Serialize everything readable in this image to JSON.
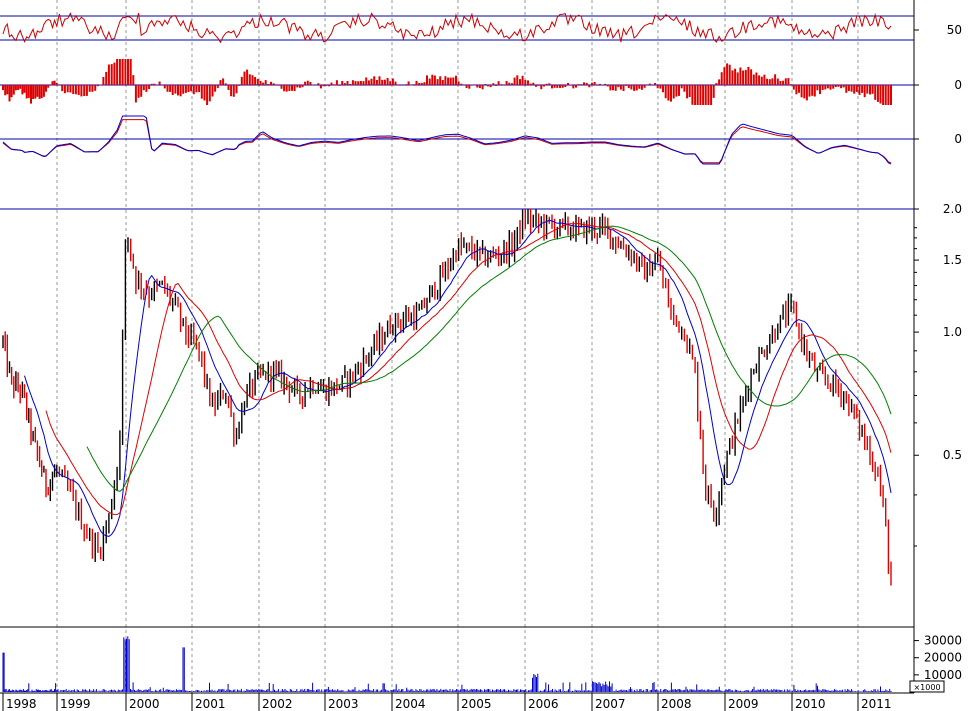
{
  "chart_data": {
    "type": "line",
    "title": "",
    "colors": {
      "up_bar": "#000000",
      "down_bar": "#e00000",
      "ma_short": "#0000cc",
      "ma_mid": "#e00000",
      "ma_long": "#008000",
      "rsi": "#cc0000",
      "macd_hist": "#e00000",
      "volume": "#0000cc",
      "reference_line": "#0000aa",
      "grid": "#9a9a9a"
    },
    "years": [
      "1998",
      "1999",
      "2000",
      "2001",
      "2002",
      "2003",
      "2004",
      "2005",
      "2006",
      "2007",
      "2008",
      "2009",
      "2010",
      "2011"
    ],
    "indicators": {
      "rsi": {
        "tick_labels": [
          "50"
        ],
        "levels": [
          30,
          70
        ]
      },
      "macd": {
        "tick_labels": [
          "0"
        ]
      },
      "oscillator": {
        "tick_labels": [
          "0"
        ]
      }
    },
    "price": {
      "scale": "log",
      "ylim": [
        0.2,
        2.0
      ],
      "tick_labels": [
        {
          "label": "2.0",
          "value": 2.0
        },
        {
          "label": "1.5",
          "value": 1.5
        },
        {
          "label": "1.0",
          "value": 1.0
        },
        {
          "label": "0.5",
          "value": 0.5
        }
      ],
      "series": [
        {
          "x": 1998.0,
          "y": 0.95
        },
        {
          "x": 1998.15,
          "y": 0.75
        },
        {
          "x": 1998.35,
          "y": 0.72
        },
        {
          "x": 1998.55,
          "y": 0.55
        },
        {
          "x": 1998.8,
          "y": 0.42
        },
        {
          "x": 1999.0,
          "y": 0.46
        },
        {
          "x": 1999.2,
          "y": 0.4
        },
        {
          "x": 1999.4,
          "y": 0.33
        },
        {
          "x": 1999.6,
          "y": 0.29
        },
        {
          "x": 1999.75,
          "y": 0.35
        },
        {
          "x": 1999.9,
          "y": 0.5
        },
        {
          "x": 2000.0,
          "y": 1.8
        },
        {
          "x": 2000.15,
          "y": 1.35
        },
        {
          "x": 2000.35,
          "y": 1.25
        },
        {
          "x": 2000.55,
          "y": 1.3
        },
        {
          "x": 2000.75,
          "y": 1.15
        },
        {
          "x": 2000.9,
          "y": 1.0
        },
        {
          "x": 2001.1,
          "y": 0.9
        },
        {
          "x": 2001.3,
          "y": 0.65
        },
        {
          "x": 2001.5,
          "y": 0.72
        },
        {
          "x": 2001.65,
          "y": 0.55
        },
        {
          "x": 2001.8,
          "y": 0.7
        },
        {
          "x": 2002.0,
          "y": 0.78
        },
        {
          "x": 2002.2,
          "y": 0.8
        },
        {
          "x": 2002.4,
          "y": 0.76
        },
        {
          "x": 2002.6,
          "y": 0.7
        },
        {
          "x": 2002.8,
          "y": 0.75
        },
        {
          "x": 2003.0,
          "y": 0.72
        },
        {
          "x": 2003.2,
          "y": 0.74
        },
        {
          "x": 2003.4,
          "y": 0.78
        },
        {
          "x": 2003.6,
          "y": 0.86
        },
        {
          "x": 2003.8,
          "y": 0.95
        },
        {
          "x": 2004.0,
          "y": 1.05
        },
        {
          "x": 2004.2,
          "y": 1.08
        },
        {
          "x": 2004.4,
          "y": 1.1
        },
        {
          "x": 2004.6,
          "y": 1.25
        },
        {
          "x": 2004.8,
          "y": 1.4
        },
        {
          "x": 2005.0,
          "y": 1.62
        },
        {
          "x": 2005.2,
          "y": 1.58
        },
        {
          "x": 2005.4,
          "y": 1.52
        },
        {
          "x": 2005.6,
          "y": 1.55
        },
        {
          "x": 2005.8,
          "y": 1.62
        },
        {
          "x": 2006.0,
          "y": 1.9
        },
        {
          "x": 2006.2,
          "y": 1.85
        },
        {
          "x": 2006.4,
          "y": 1.82
        },
        {
          "x": 2006.6,
          "y": 1.8
        },
        {
          "x": 2006.8,
          "y": 1.78
        },
        {
          "x": 2007.0,
          "y": 1.8
        },
        {
          "x": 2007.2,
          "y": 1.78
        },
        {
          "x": 2007.4,
          "y": 1.65
        },
        {
          "x": 2007.6,
          "y": 1.55
        },
        {
          "x": 2007.8,
          "y": 1.4
        },
        {
          "x": 2008.0,
          "y": 1.5
        },
        {
          "x": 2008.2,
          "y": 1.1
        },
        {
          "x": 2008.4,
          "y": 1.0
        },
        {
          "x": 2008.55,
          "y": 0.8
        },
        {
          "x": 2008.7,
          "y": 0.42
        },
        {
          "x": 2008.85,
          "y": 0.36
        },
        {
          "x": 2009.0,
          "y": 0.48
        },
        {
          "x": 2009.2,
          "y": 0.62
        },
        {
          "x": 2009.4,
          "y": 0.8
        },
        {
          "x": 2009.6,
          "y": 0.92
        },
        {
          "x": 2009.8,
          "y": 1.05
        },
        {
          "x": 2010.0,
          "y": 1.15
        },
        {
          "x": 2010.2,
          "y": 0.9
        },
        {
          "x": 2010.4,
          "y": 0.78
        },
        {
          "x": 2010.6,
          "y": 0.75
        },
        {
          "x": 2010.8,
          "y": 0.7
        },
        {
          "x": 2011.0,
          "y": 0.6
        },
        {
          "x": 2011.15,
          "y": 0.52
        },
        {
          "x": 2011.3,
          "y": 0.45
        },
        {
          "x": 2011.4,
          "y": 0.36
        },
        {
          "x": 2011.5,
          "y": 0.24
        }
      ]
    },
    "volume": {
      "tick_labels": [
        "30000",
        "20000",
        "10000"
      ],
      "unit_label": "×1000",
      "ylim": [
        0,
        35000
      ]
    }
  }
}
